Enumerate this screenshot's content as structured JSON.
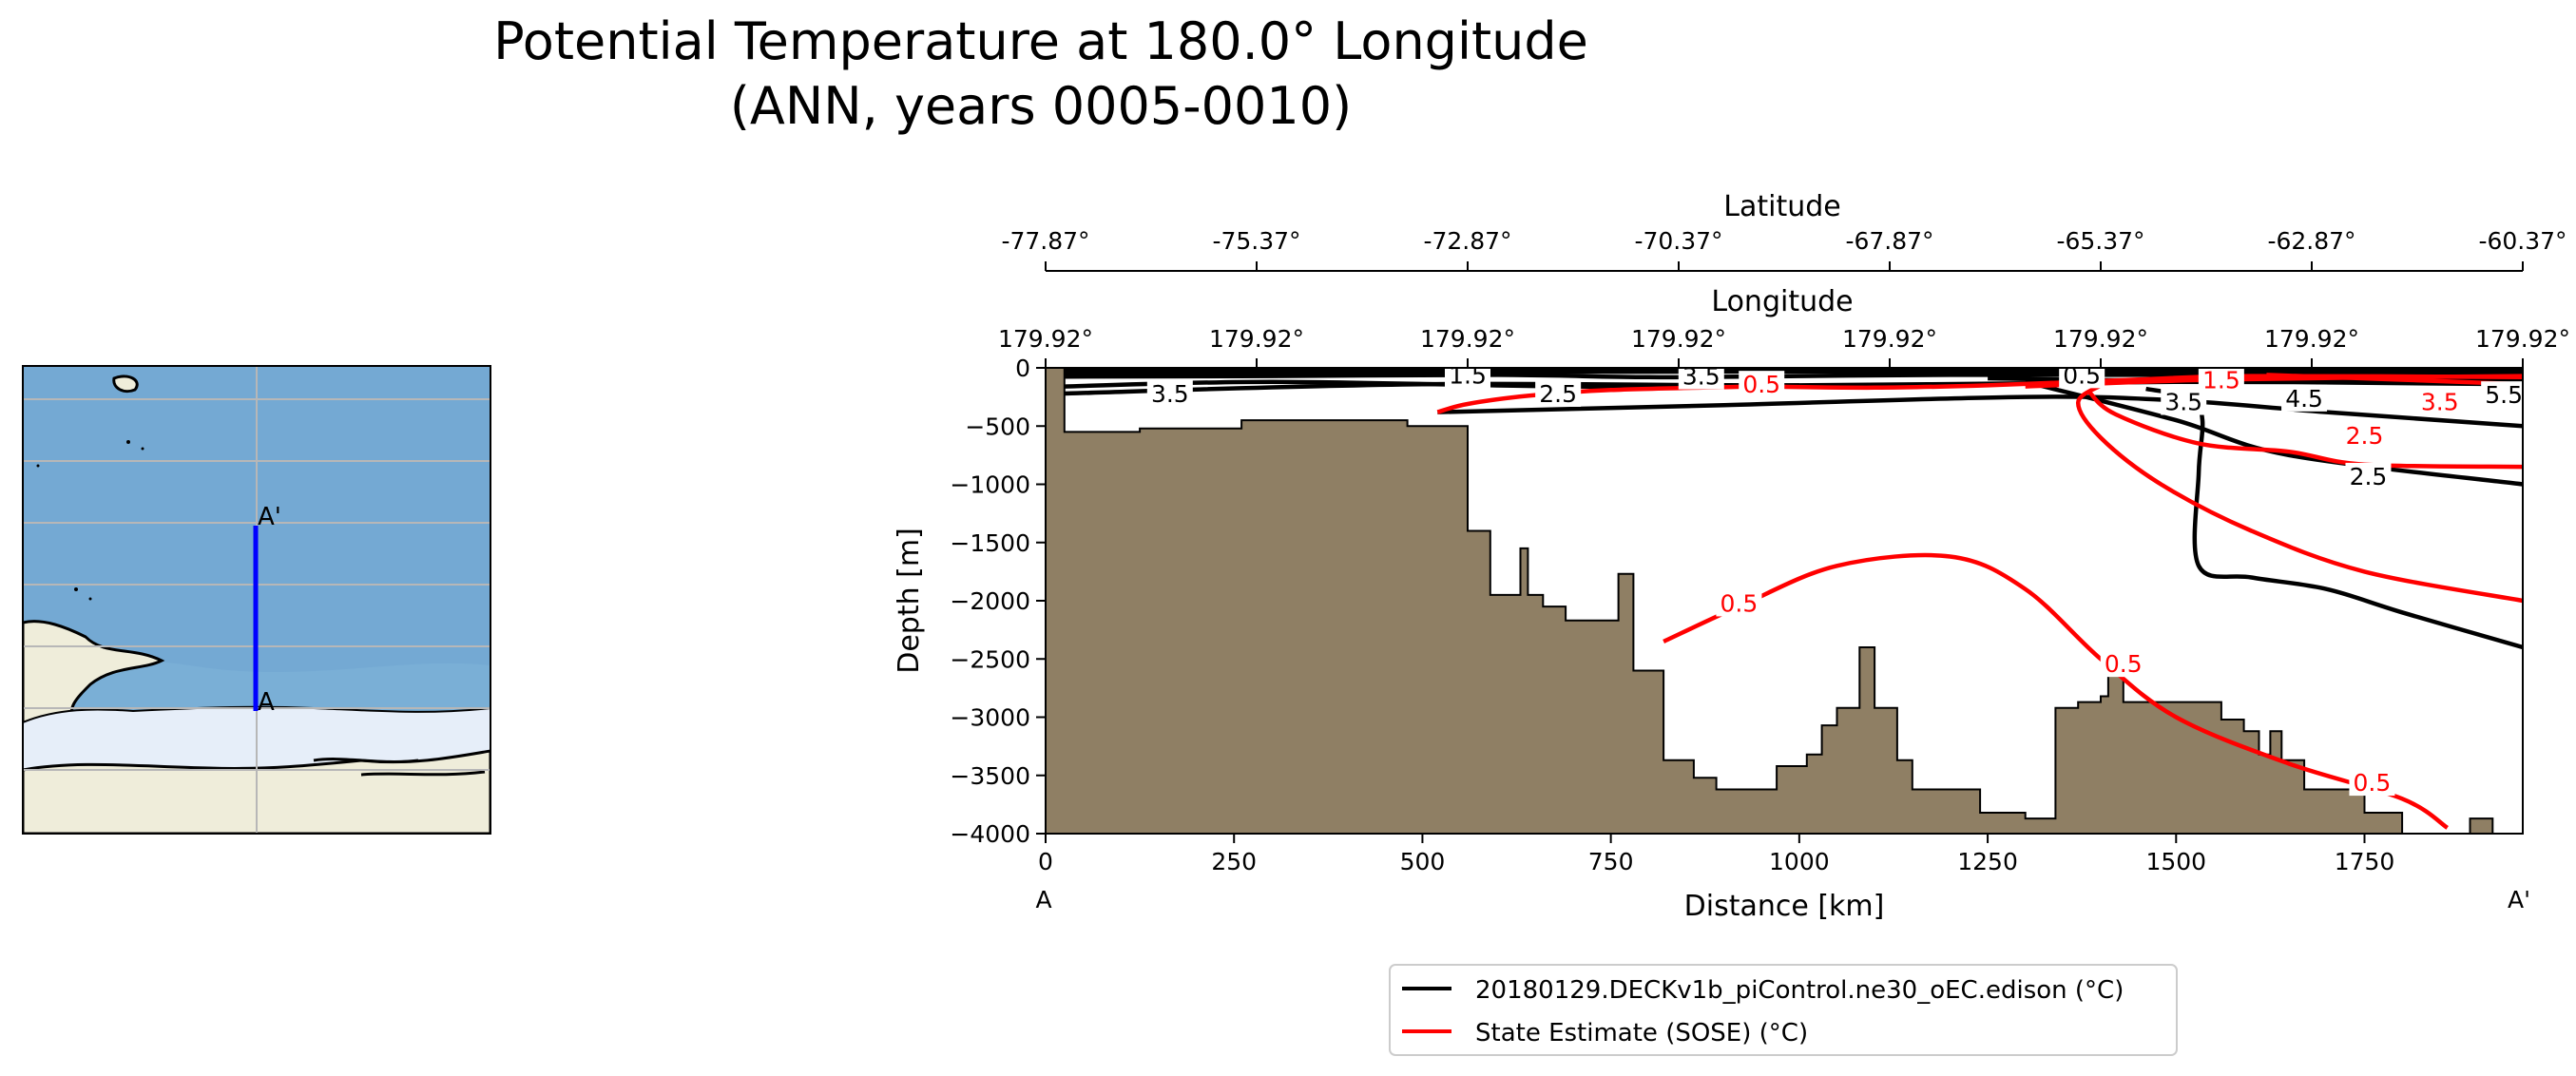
{
  "title_line1": "Potential Temperature at 180.0° Longitude",
  "title_line2": "(ANN, years 0005-0010)",
  "map": {
    "point_a_label": "A",
    "point_b_label": "A'",
    "colors": {
      "ocean": "#7aafd6",
      "land": "#efedda",
      "ice": "#e6eef9",
      "transect": "#0000ff",
      "grid": "#b7b7b7"
    }
  },
  "chart_data": {
    "type": "contour",
    "xlabel": "Distance [km]",
    "ylabel": "Depth [m]",
    "xlim": [
      0,
      1960
    ],
    "ylim": [
      -4000,
      0
    ],
    "x_ticks": [
      {
        "value": 0,
        "label": "0"
      },
      {
        "value": 250,
        "label": "250"
      },
      {
        "value": 500,
        "label": "500"
      },
      {
        "value": 750,
        "label": "750"
      },
      {
        "value": 1000,
        "label": "1000"
      },
      {
        "value": 1250,
        "label": "1250"
      },
      {
        "value": 1500,
        "label": "1500"
      },
      {
        "value": 1750,
        "label": "1750"
      }
    ],
    "y_ticks": [
      {
        "value": 0,
        "label": "0"
      },
      {
        "value": -500,
        "label": "−500"
      },
      {
        "value": -1000,
        "label": "−1000"
      },
      {
        "value": -1500,
        "label": "−1500"
      },
      {
        "value": -2000,
        "label": "−2000"
      },
      {
        "value": -2500,
        "label": "−2500"
      },
      {
        "value": -3000,
        "label": "−3000"
      },
      {
        "value": -3500,
        "label": "−3500"
      },
      {
        "value": -4000,
        "label": "−4000"
      }
    ],
    "endpoint_left": "A",
    "endpoint_right": "A'",
    "latitude_axis": {
      "label": "Latitude",
      "ticks": [
        {
          "value": 0,
          "label": "-77.87°"
        },
        {
          "value": 280,
          "label": "-75.37°"
        },
        {
          "value": 560,
          "label": "-72.87°"
        },
        {
          "value": 840,
          "label": "-70.37°"
        },
        {
          "value": 1120,
          "label": "-67.87°"
        },
        {
          "value": 1400,
          "label": "-65.37°"
        },
        {
          "value": 1680,
          "label": "-62.87°"
        },
        {
          "value": 1960,
          "label": "-60.37°"
        }
      ]
    },
    "longitude_axis": {
      "label": "Longitude",
      "ticks": [
        {
          "value": 0,
          "label": "179.92°"
        },
        {
          "value": 280,
          "label": "179.92°"
        },
        {
          "value": 560,
          "label": "179.92°"
        },
        {
          "value": 840,
          "label": "179.92°"
        },
        {
          "value": 1120,
          "label": "179.92°"
        },
        {
          "value": 1400,
          "label": "179.92°"
        },
        {
          "value": 1680,
          "label": "179.92°"
        },
        {
          "value": 1960,
          "label": "179.92°"
        }
      ]
    },
    "bathymetry": {
      "color": "#8f7f64",
      "points": [
        [
          0,
          0
        ],
        [
          25,
          0
        ],
        [
          25,
          -550
        ],
        [
          125,
          -550
        ],
        [
          125,
          -520
        ],
        [
          260,
          -520
        ],
        [
          260,
          -450
        ],
        [
          480,
          -450
        ],
        [
          480,
          -500
        ],
        [
          560,
          -500
        ],
        [
          560,
          -1400
        ],
        [
          590,
          -1400
        ],
        [
          590,
          -1950
        ],
        [
          630,
          -1950
        ],
        [
          630,
          -1550
        ],
        [
          640,
          -1550
        ],
        [
          640,
          -1950
        ],
        [
          660,
          -1950
        ],
        [
          660,
          -2050
        ],
        [
          690,
          -2050
        ],
        [
          690,
          -2170
        ],
        [
          760,
          -2170
        ],
        [
          760,
          -1770
        ],
        [
          780,
          -1770
        ],
        [
          780,
          -2600
        ],
        [
          820,
          -2600
        ],
        [
          820,
          -3370
        ],
        [
          860,
          -3370
        ],
        [
          860,
          -3520
        ],
        [
          890,
          -3520
        ],
        [
          890,
          -3620
        ],
        [
          970,
          -3620
        ],
        [
          970,
          -3420
        ],
        [
          1010,
          -3420
        ],
        [
          1010,
          -3320
        ],
        [
          1030,
          -3320
        ],
        [
          1030,
          -3070
        ],
        [
          1050,
          -3070
        ],
        [
          1050,
          -2920
        ],
        [
          1080,
          -2920
        ],
        [
          1080,
          -2400
        ],
        [
          1100,
          -2400
        ],
        [
          1100,
          -2920
        ],
        [
          1130,
          -2920
        ],
        [
          1130,
          -3370
        ],
        [
          1150,
          -3370
        ],
        [
          1150,
          -3620
        ],
        [
          1240,
          -3620
        ],
        [
          1240,
          -3820
        ],
        [
          1300,
          -3820
        ],
        [
          1300,
          -3870
        ],
        [
          1340,
          -3870
        ],
        [
          1340,
          -2920
        ],
        [
          1370,
          -2920
        ],
        [
          1370,
          -2870
        ],
        [
          1400,
          -2870
        ],
        [
          1400,
          -2820
        ],
        [
          1410,
          -2820
        ],
        [
          1410,
          -2620
        ],
        [
          1430,
          -2620
        ],
        [
          1430,
          -2870
        ],
        [
          1560,
          -2870
        ],
        [
          1560,
          -3020
        ],
        [
          1590,
          -3020
        ],
        [
          1590,
          -3120
        ],
        [
          1610,
          -3120
        ],
        [
          1610,
          -3320
        ],
        [
          1625,
          -3320
        ],
        [
          1625,
          -3120
        ],
        [
          1640,
          -3120
        ],
        [
          1640,
          -3370
        ],
        [
          1670,
          -3370
        ],
        [
          1670,
          -3620
        ],
        [
          1750,
          -3620
        ],
        [
          1750,
          -3820
        ],
        [
          1800,
          -3820
        ],
        [
          1800,
          -4000
        ],
        [
          0,
          -4000
        ]
      ],
      "patch_points": [
        [
          1890,
          -4000
        ],
        [
          1890,
          -3870
        ],
        [
          1920,
          -3870
        ],
        [
          1920,
          -4000
        ]
      ]
    },
    "series": [
      {
        "name": "20180129.DECKv1b_piControl.ne30_oEC.edison (°C)",
        "color": "#000000",
        "contours": [
          {
            "points": [
              [
                25,
                -220
              ],
              [
                500,
                -140
              ],
              [
                1000,
                -150
              ],
              [
                1500,
                -120
              ],
              [
                1960,
                -140
              ]
            ]
          },
          {
            "points": [
              [
                25,
                -160
              ],
              [
                300,
                -120
              ],
              [
                700,
                -160
              ],
              [
                1000,
                -150
              ]
            ]
          },
          {
            "points": [
              [
                1250,
                -90
              ],
              [
                1500,
                -110
              ],
              [
                1960,
                -110
              ]
            ]
          },
          {
            "points": [
              [
                25,
                -75
              ],
              [
                300,
                -70
              ],
              [
                600,
                -60
              ],
              [
                800,
                -80
              ],
              [
                1000,
                -70
              ],
              [
                1200,
                -60
              ],
              [
                1500,
                -60
              ],
              [
                1960,
                -65
              ]
            ]
          },
          {
            "points": [
              [
                25,
                -20
              ],
              [
                1960,
                -20
              ]
            ]
          },
          {
            "points": [
              [
                25,
                -40
              ],
              [
                600,
                -35
              ],
              [
                1200,
                -30
              ],
              [
                1960,
                -35
              ]
            ]
          },
          {
            "points": [
              [
                520,
                -380
              ],
              [
                900,
                -320
              ],
              [
                1300,
                -250
              ],
              [
                1500,
                -280
              ],
              [
                1700,
                -380
              ],
              [
                1960,
                -500
              ]
            ]
          },
          {
            "points": [
              [
                1300,
                -120
              ],
              [
                1500,
                -450
              ],
              [
                1650,
                -750
              ],
              [
                1960,
                -1000
              ]
            ]
          },
          {
            "points": [
              [
                1460,
                -180
              ],
              [
                1520,
                -260
              ],
              [
                1535,
                -450
              ],
              [
                1530,
                -900
              ],
              [
                1530,
                -1700
              ],
              [
                1600,
                -1800
              ],
              [
                1700,
                -1900
              ],
              [
                1800,
                -2100
              ],
              [
                1960,
                -2400
              ]
            ]
          }
        ],
        "labels": [
          {
            "x": 165,
            "y": -220,
            "text": "3.5"
          },
          {
            "x": 680,
            "y": -220,
            "text": "2.5"
          },
          {
            "x": 560,
            "y": -60,
            "text": "1.5"
          },
          {
            "x": 870,
            "y": -70,
            "text": "3.5"
          },
          {
            "x": 1375,
            "y": -60,
            "text": "0.5"
          },
          {
            "x": 1510,
            "y": -290,
            "text": "3.5"
          },
          {
            "x": 1670,
            "y": -260,
            "text": "4.5"
          },
          {
            "x": 1755,
            "y": -930,
            "text": "2.5"
          },
          {
            "x": 1935,
            "y": -230,
            "text": "5.5"
          }
        ]
      },
      {
        "name": "State Estimate (SOSE) (°C)",
        "color": "#ff0000",
        "contours": [
          {
            "points": [
              [
                520,
                -380
              ],
              [
                560,
                -310
              ],
              [
                640,
                -240
              ],
              [
                750,
                -190
              ],
              [
                940,
                -160
              ]
            ]
          },
          {
            "points": [
              [
                940,
                -160
              ],
              [
                1100,
                -170
              ],
              [
                1250,
                -150
              ],
              [
                1450,
                -100
              ],
              [
                1600,
                -70
              ],
              [
                1960,
                -80
              ]
            ]
          },
          {
            "points": [
              [
                1300,
                -160
              ],
              [
                1560,
                -100
              ],
              [
                1960,
                -70
              ]
            ]
          },
          {
            "points": [
              [
                1620,
                -60
              ],
              [
                1960,
                -140
              ]
            ]
          },
          {
            "points": [
              [
                1385,
                -210
              ],
              [
                1420,
                -400
              ],
              [
                1530,
                -650
              ],
              [
                1650,
                -720
              ],
              [
                1750,
                -830
              ],
              [
                1960,
                -850
              ]
            ]
          },
          {
            "points": [
              [
                1400,
                -150
              ],
              [
                1370,
                -300
              ],
              [
                1400,
                -600
              ],
              [
                1480,
                -1000
              ],
              [
                1600,
                -1400
              ],
              [
                1750,
                -1750
              ],
              [
                1960,
                -2000
              ]
            ]
          },
          {
            "points": [
              [
                820,
                -2350
              ],
              [
                920,
                -2050
              ],
              [
                1050,
                -1700
              ],
              [
                1200,
                -1620
              ],
              [
                1300,
                -1900
              ],
              [
                1400,
                -2500
              ],
              [
                1500,
                -3000
              ],
              [
                1650,
                -3400
              ],
              [
                1800,
                -3700
              ],
              [
                1860,
                -3950
              ]
            ]
          }
        ],
        "labels": [
          {
            "x": 950,
            "y": -140,
            "text": "0.5"
          },
          {
            "x": 1560,
            "y": -100,
            "text": "1.5"
          },
          {
            "x": 1750,
            "y": -580,
            "text": "2.5"
          },
          {
            "x": 1850,
            "y": -290,
            "text": "3.5"
          },
          {
            "x": 920,
            "y": -2020,
            "text": "0.5"
          },
          {
            "x": 1430,
            "y": -2540,
            "text": "0.5"
          },
          {
            "x": 1760,
            "y": -3560,
            "text": "0.5"
          }
        ]
      }
    ],
    "legend": {
      "position": "bottom-center"
    }
  }
}
